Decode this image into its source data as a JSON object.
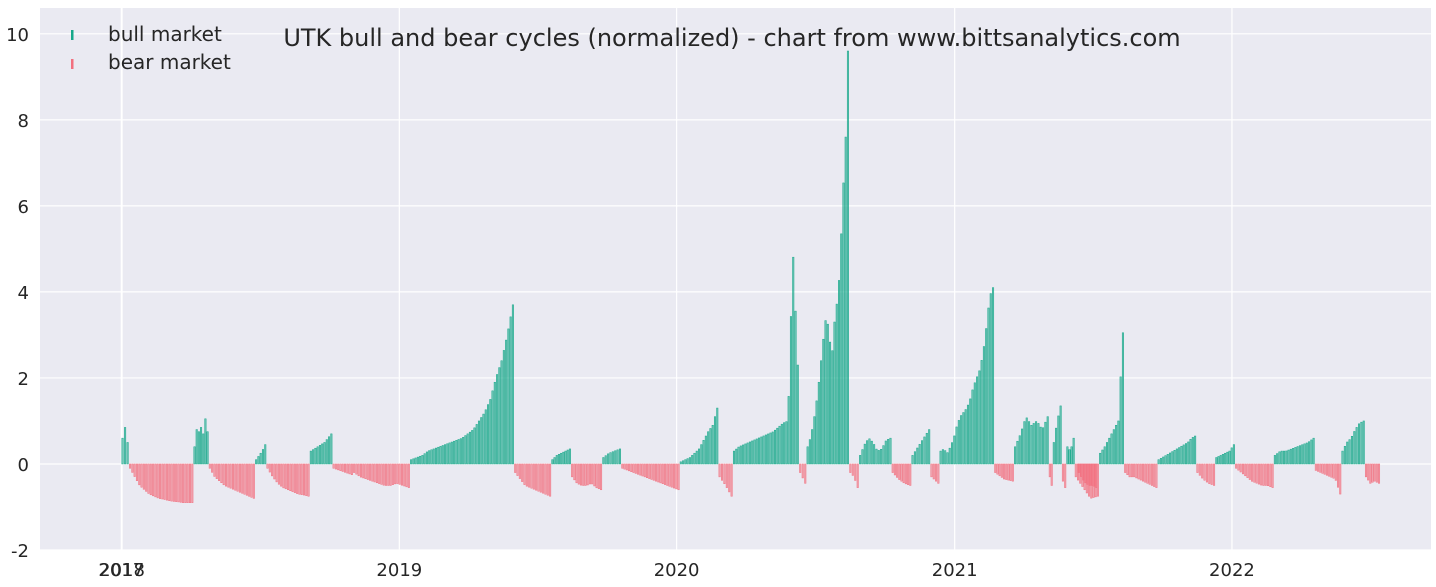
{
  "chart_data": {
    "type": "bar",
    "title": "UTK bull and bear cycles (normalized)  - chart from www.bittsanalytics.com",
    "xlabel": "",
    "ylabel": "",
    "x_range": [
      "2017-09-15",
      "2022-09-20"
    ],
    "ylim": [
      -2,
      10.6
    ],
    "y_ticks": [
      -2,
      0,
      2,
      4,
      6,
      8,
      10
    ],
    "x_ticks": [
      {
        "label": "2017",
        "date": "2017-12-31"
      },
      {
        "label": "2018",
        "date": "2018-01-01"
      },
      {
        "label": "2019",
        "date": "2019-01-01"
      },
      {
        "label": "2020",
        "date": "2020-01-01"
      },
      {
        "label": "2021",
        "date": "2021-01-01"
      },
      {
        "label": "2022",
        "date": "2022-01-01"
      }
    ],
    "grid": true,
    "background": "#eaeaf2",
    "legend_position": "top-left",
    "series": [
      {
        "name": "bull market",
        "color": "#17a88a",
        "segments": [
          {
            "start": "2017-12-31",
            "end": "2018-01-10",
            "values": [
              0.6,
              0.55,
              1.15,
              0.5
            ]
          },
          {
            "start": "2018-04-05",
            "end": "2018-04-25",
            "values": [
              0.4,
              0.8,
              0.75,
              0.85,
              0.7,
              1.05,
              0.75
            ]
          },
          {
            "start": "2018-06-25",
            "end": "2018-07-10",
            "values": [
              0.1,
              0.2,
              0.3,
              0.45
            ]
          },
          {
            "start": "2018-09-05",
            "end": "2018-10-05",
            "values": [
              0.3,
              0.35,
              0.4,
              0.45,
              0.5,
              0.6,
              0.7
            ]
          },
          {
            "start": "2019-01-15",
            "end": "2019-06-01",
            "values": [
              0.1,
              0.15,
              0.2,
              0.3,
              0.35,
              0.4,
              0.45,
              0.5,
              0.55,
              0.6,
              0.7,
              0.8,
              1.0,
              1.2,
              1.5,
              2.0,
              2.4,
              3.0,
              3.7
            ]
          },
          {
            "start": "2019-07-20",
            "end": "2019-08-15",
            "values": [
              0.1,
              0.2,
              0.25,
              0.3,
              0.35
            ]
          },
          {
            "start": "2019-09-25",
            "end": "2019-10-20",
            "values": [
              0.15,
              0.25,
              0.3,
              0.35
            ]
          },
          {
            "start": "2020-01-05",
            "end": "2020-02-25",
            "values": [
              0.05,
              0.1,
              0.15,
              0.25,
              0.35,
              0.55,
              0.75,
              0.9,
              1.3
            ]
          },
          {
            "start": "2020-03-15",
            "end": "2020-06-10",
            "values": [
              0.3,
              0.4,
              0.45,
              0.5,
              0.55,
              0.6,
              0.65,
              0.7,
              0.75,
              0.85,
              0.95,
              1.0,
              5.0,
              2.3
            ]
          },
          {
            "start": "2020-06-20",
            "end": "2020-08-15",
            "values": [
              0.4,
              0.6,
              0.9,
              1.3,
              1.8,
              2.4,
              3.0,
              3.5,
              3.0,
              2.5,
              3.3,
              3.8,
              4.5,
              6.2,
              7.2,
              9.6
            ]
          },
          {
            "start": "2020-08-28",
            "end": "2020-10-10",
            "values": [
              0.2,
              0.45,
              0.6,
              0.5,
              0.3,
              0.35,
              0.55,
              0.6
            ]
          },
          {
            "start": "2020-11-05",
            "end": "2020-11-30",
            "values": [
              0.2,
              0.4,
              0.6,
              0.8
            ]
          },
          {
            "start": "2020-12-12",
            "end": "2021-02-22",
            "values": [
              0.3,
              0.35,
              0.25,
              0.4,
              0.6,
              0.9,
              1.1,
              1.2,
              1.3,
              1.5,
              1.8,
              2.0,
              2.2,
              2.6,
              3.2,
              3.9,
              4.1
            ]
          },
          {
            "start": "2021-03-20",
            "end": "2021-05-05",
            "values": [
              0.4,
              0.7,
              1.1,
              0.9,
              1.0,
              0.8,
              1.1
            ]
          },
          {
            "start": "2021-05-10",
            "end": "2021-05-22",
            "values": [
              0.5,
              1.0,
              1.35
            ]
          },
          {
            "start": "2021-05-28",
            "end": "2021-06-08",
            "values": [
              0.4,
              0.3,
              0.6
            ]
          },
          {
            "start": "2021-07-10",
            "end": "2021-08-12",
            "values": [
              0.25,
              0.4,
              0.6,
              0.8,
              1.0,
              3.05
            ]
          },
          {
            "start": "2021-09-25",
            "end": "2021-11-15",
            "values": [
              0.1,
              0.15,
              0.2,
              0.25,
              0.3,
              0.35,
              0.4,
              0.45,
              0.5,
              0.6,
              0.65
            ]
          },
          {
            "start": "2021-12-10",
            "end": "2022-01-05",
            "values": [
              0.15,
              0.2,
              0.25,
              0.3,
              0.45
            ]
          },
          {
            "start": "2022-02-25",
            "end": "2022-04-20",
            "values": [
              0.2,
              0.3,
              0.3,
              0.35,
              0.4,
              0.45,
              0.5,
              0.6
            ]
          },
          {
            "start": "2022-05-25",
            "end": "2022-06-25",
            "values": [
              0.3,
              0.5,
              0.6,
              0.8,
              0.95,
              1.0
            ]
          }
        ]
      },
      {
        "name": "bear market",
        "color": "#f2707f",
        "segments": [
          {
            "start": "2018-01-10",
            "end": "2018-04-05",
            "values": [
              -0.1,
              -0.3,
              -0.5,
              -0.6,
              -0.7,
              -0.75,
              -0.8,
              -0.82,
              -0.85,
              -0.87,
              -0.88,
              -0.9,
              -0.9,
              -0.9
            ]
          },
          {
            "start": "2018-04-25",
            "end": "2018-06-25",
            "values": [
              -0.1,
              -0.3,
              -0.4,
              -0.5,
              -0.55,
              -0.6,
              -0.65,
              -0.7,
              -0.75,
              -0.8
            ]
          },
          {
            "start": "2018-07-10",
            "end": "2018-09-05",
            "values": [
              -0.1,
              -0.3,
              -0.45,
              -0.55,
              -0.6,
              -0.65,
              -0.7,
              -0.72,
              -0.75
            ]
          },
          {
            "start": "2018-10-05",
            "end": "2018-11-01",
            "values": [
              -0.1,
              -0.15,
              -0.2,
              -0.25
            ]
          },
          {
            "start": "2018-11-01",
            "end": "2019-01-15",
            "values": [
              -0.2,
              -0.3,
              -0.35,
              -0.4,
              -0.45,
              -0.5,
              -0.5,
              -0.45,
              -0.5,
              -0.55
            ]
          },
          {
            "start": "2019-06-01",
            "end": "2019-07-20",
            "values": [
              -0.2,
              -0.35,
              -0.5,
              -0.55,
              -0.6,
              -0.65,
              -0.7,
              -0.75
            ]
          },
          {
            "start": "2019-08-15",
            "end": "2019-09-25",
            "values": [
              -0.3,
              -0.45,
              -0.5,
              -0.5,
              -0.45,
              -0.55,
              -0.6
            ]
          },
          {
            "start": "2019-10-20",
            "end": "2020-01-05",
            "values": [
              -0.1,
              -0.15,
              -0.2,
              -0.25,
              -0.3,
              -0.35,
              -0.4,
              -0.45,
              -0.5,
              -0.55,
              -0.6
            ]
          },
          {
            "start": "2020-02-25",
            "end": "2020-03-15",
            "values": [
              -0.3,
              -0.5,
              -0.75
            ]
          },
          {
            "start": "2020-06-10",
            "end": "2020-06-20",
            "values": [
              -0.2,
              -0.45
            ]
          },
          {
            "start": "2020-08-15",
            "end": "2020-08-28",
            "values": [
              -0.2,
              -0.3,
              -0.55
            ]
          },
          {
            "start": "2020-10-10",
            "end": "2020-11-05",
            "values": [
              -0.2,
              -0.35,
              -0.45,
              -0.5
            ]
          },
          {
            "start": "2020-11-30",
            "end": "2020-12-12",
            "values": [
              -0.3,
              -0.45
            ]
          },
          {
            "start": "2021-02-22",
            "end": "2021-03-20",
            "values": [
              -0.2,
              -0.35,
              -0.4
            ]
          },
          {
            "start": "2021-05-05",
            "end": "2021-05-10",
            "values": [
              -0.3,
              -0.5
            ]
          },
          {
            "start": "2021-05-22",
            "end": "2021-05-28",
            "values": [
              -0.4,
              -0.55
            ]
          },
          {
            "start": "2021-06-08",
            "end": "2021-07-10",
            "values": [
              -0.3,
              -0.55,
              -0.8,
              -0.75
            ]
          },
          {
            "start": "2021-06-12",
            "end": "2021-07-08",
            "values": [
              -0.2,
              -0.35,
              -0.45,
              -0.5,
              -0.5,
              -0.55
            ]
          },
          {
            "start": "2021-08-12",
            "end": "2021-09-25",
            "values": [
              -0.2,
              -0.3,
              -0.3,
              -0.35,
              -0.4,
              -0.45,
              -0.5,
              -0.55
            ]
          },
          {
            "start": "2021-11-15",
            "end": "2021-12-10",
            "values": [
              -0.2,
              -0.35,
              -0.45,
              -0.5
            ]
          },
          {
            "start": "2022-01-05",
            "end": "2022-02-25",
            "values": [
              -0.1,
              -0.2,
              -0.3,
              -0.4,
              -0.45,
              -0.5,
              -0.5,
              -0.55
            ]
          },
          {
            "start": "2022-04-20",
            "end": "2022-05-25",
            "values": [
              -0.15,
              -0.2,
              -0.25,
              -0.3,
              -0.35,
              -0.7
            ]
          },
          {
            "start": "2022-06-25",
            "end": "2022-07-15",
            "values": [
              -0.3,
              -0.45,
              -0.4,
              -0.45
            ]
          }
        ]
      }
    ]
  }
}
